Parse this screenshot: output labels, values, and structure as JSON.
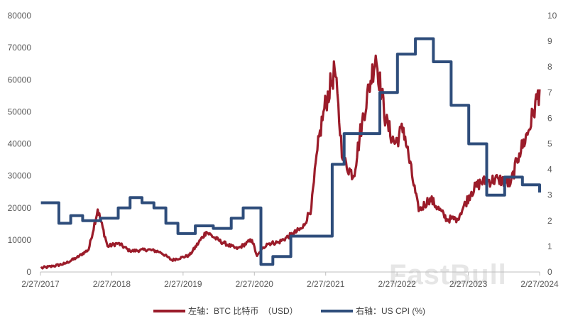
{
  "chart_data": {
    "type": "line",
    "title": "",
    "xlabel": "",
    "ylabel_left": "",
    "ylabel_right": "",
    "x_ticks": [
      "2/27/2017",
      "2/27/2018",
      "2/27/2019",
      "2/27/2020",
      "2/27/2021",
      "2/27/2022",
      "2/27/2023",
      "2/27/2024"
    ],
    "x_range": [
      "2017-02-27",
      "2024-02-27"
    ],
    "y_left": {
      "min": 0,
      "max": 80000,
      "ticks": [
        "0",
        "10000",
        "20000",
        "30000",
        "40000",
        "50000",
        "60000",
        "70000",
        "80000"
      ]
    },
    "y_right": {
      "min": 0,
      "max": 10,
      "ticks": [
        "0",
        "1",
        "2",
        "3",
        "4",
        "5",
        "6",
        "7",
        "8",
        "9",
        "10"
      ]
    },
    "grid": false,
    "legend_position": "bottom",
    "series": [
      {
        "name": "左轴：BTC 比特币　（USD）",
        "axis": "left",
        "color": "#9b1c2a",
        "x": [
          "2017-03-01",
          "2017-05-01",
          "2017-07-01",
          "2017-09-01",
          "2017-11-01",
          "2017-12-17",
          "2018-02-06",
          "2018-04-01",
          "2018-06-01",
          "2018-09-01",
          "2018-11-01",
          "2019-01-01",
          "2019-04-01",
          "2019-06-26",
          "2019-09-01",
          "2019-12-01",
          "2020-02-15",
          "2020-03-12",
          "2020-05-01",
          "2020-07-01",
          "2020-09-01",
          "2020-11-01",
          "2020-12-15",
          "2021-01-15",
          "2021-02-15",
          "2021-04-14",
          "2021-05-25",
          "2021-07-20",
          "2021-09-01",
          "2021-11-10",
          "2022-01-01",
          "2022-02-15",
          "2022-04-01",
          "2022-05-15",
          "2022-06-18",
          "2022-08-15",
          "2022-11-09",
          "2023-01-01",
          "2023-03-15",
          "2023-05-01",
          "2023-08-01",
          "2023-10-01",
          "2023-11-15",
          "2024-01-01",
          "2024-02-27"
        ],
        "values": [
          1200,
          1800,
          2600,
          4500,
          7000,
          19500,
          8000,
          9000,
          6500,
          7000,
          6300,
          3700,
          5200,
          12500,
          9700,
          7200,
          10000,
          5000,
          8800,
          9300,
          11500,
          13800,
          20000,
          38000,
          50000,
          63000,
          35000,
          30000,
          47000,
          67500,
          47000,
          40000,
          45000,
          30000,
          19000,
          23000,
          16500,
          16600,
          25000,
          28000,
          29000,
          27500,
          37000,
          44000,
          57000
        ]
      },
      {
        "name": "右轴：US CPI (%)",
        "axis": "right",
        "color": "#2e4d7b",
        "step": true,
        "x": [
          "2017-03-01",
          "2017-06-01",
          "2017-08-01",
          "2017-10-01",
          "2018-01-01",
          "2018-04-01",
          "2018-06-01",
          "2018-08-01",
          "2018-10-01",
          "2018-12-01",
          "2019-02-01",
          "2019-05-01",
          "2019-08-01",
          "2019-11-01",
          "2020-01-01",
          "2020-04-01",
          "2020-06-01",
          "2020-09-01",
          "2021-01-01",
          "2021-04-01",
          "2021-06-01",
          "2021-09-01",
          "2021-12-01",
          "2022-03-01",
          "2022-06-01",
          "2022-09-01",
          "2022-12-01",
          "2023-03-01",
          "2023-06-01",
          "2023-09-01",
          "2023-12-01",
          "2024-02-27"
        ],
        "values": [
          2.7,
          1.9,
          2.2,
          2.0,
          2.1,
          2.5,
          2.9,
          2.7,
          2.5,
          1.9,
          1.5,
          1.8,
          1.7,
          2.1,
          2.5,
          0.3,
          0.6,
          1.4,
          1.4,
          4.2,
          5.4,
          5.4,
          7.0,
          8.5,
          9.1,
          8.2,
          6.5,
          5.0,
          3.0,
          3.7,
          3.4,
          3.1
        ]
      }
    ]
  },
  "legend": {
    "btc_label": "左轴：BTC 比特币　（USD）",
    "cpi_label": "右轴：US CPI (%)"
  },
  "watermark": {
    "text": "FastBull"
  }
}
